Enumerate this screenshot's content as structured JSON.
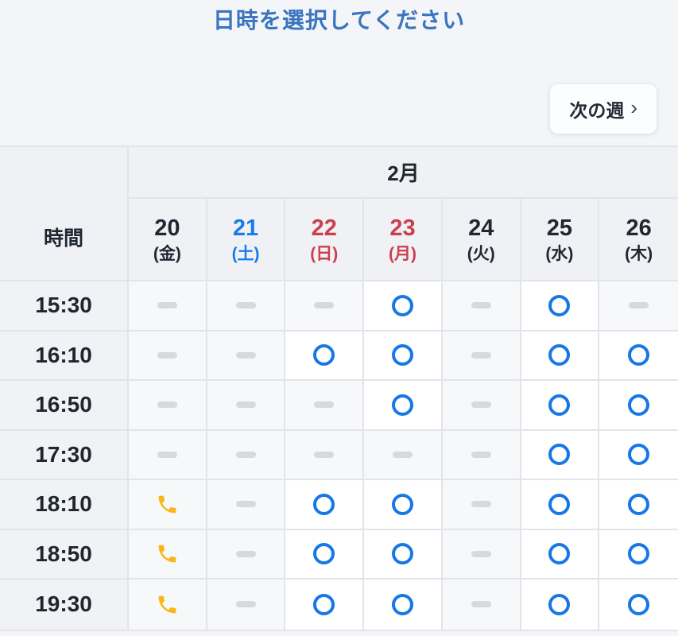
{
  "header": {
    "title": "日時を選択してください",
    "next_week_label": "次の週",
    "next_week_chevron": "›"
  },
  "table": {
    "time_header": "時間",
    "month_header": "2月",
    "days": [
      {
        "date": "20",
        "weekday": "(金)",
        "color": "default"
      },
      {
        "date": "21",
        "weekday": "(土)",
        "color": "saturday"
      },
      {
        "date": "22",
        "weekday": "(日)",
        "color": "holiday"
      },
      {
        "date": "23",
        "weekday": "(月)",
        "color": "holiday"
      },
      {
        "date": "24",
        "weekday": "(火)",
        "color": "default"
      },
      {
        "date": "25",
        "weekday": "(水)",
        "color": "default"
      },
      {
        "date": "26",
        "weekday": "(木)",
        "color": "default"
      }
    ],
    "rows": [
      {
        "time": "15:30",
        "cells": [
          "unavailable",
          "unavailable",
          "unavailable",
          "available",
          "unavailable",
          "available",
          "unavailable"
        ]
      },
      {
        "time": "16:10",
        "cells": [
          "unavailable",
          "unavailable",
          "available",
          "available",
          "unavailable",
          "available",
          "available"
        ]
      },
      {
        "time": "16:50",
        "cells": [
          "unavailable",
          "unavailable",
          "unavailable",
          "available",
          "unavailable",
          "available",
          "available"
        ]
      },
      {
        "time": "17:30",
        "cells": [
          "unavailable",
          "unavailable",
          "unavailable",
          "unavailable",
          "unavailable",
          "available",
          "available"
        ]
      },
      {
        "time": "18:10",
        "cells": [
          "phone",
          "unavailable",
          "available",
          "available",
          "unavailable",
          "available",
          "available"
        ]
      },
      {
        "time": "18:50",
        "cells": [
          "phone",
          "unavailable",
          "available",
          "available",
          "unavailable",
          "available",
          "available"
        ]
      },
      {
        "time": "19:30",
        "cells": [
          "phone",
          "unavailable",
          "available",
          "available",
          "unavailable",
          "available",
          "available"
        ]
      }
    ],
    "cell_legend": {
      "available": "circle-icon",
      "unavailable": "dash-icon",
      "phone": "phone-icon"
    }
  },
  "colors": {
    "title_blue": "#3a74be",
    "saturday_blue": "#187be8",
    "holiday_red": "#ce3d4c",
    "available_circle_blue": "#1677e6",
    "unavailable_dash_gray": "#d6d9de",
    "phone_amber": "#f9b619",
    "page_background": "#f3f5f9",
    "header_cell_background": "#eff1f5",
    "grid_border": "#e2e4e9"
  }
}
